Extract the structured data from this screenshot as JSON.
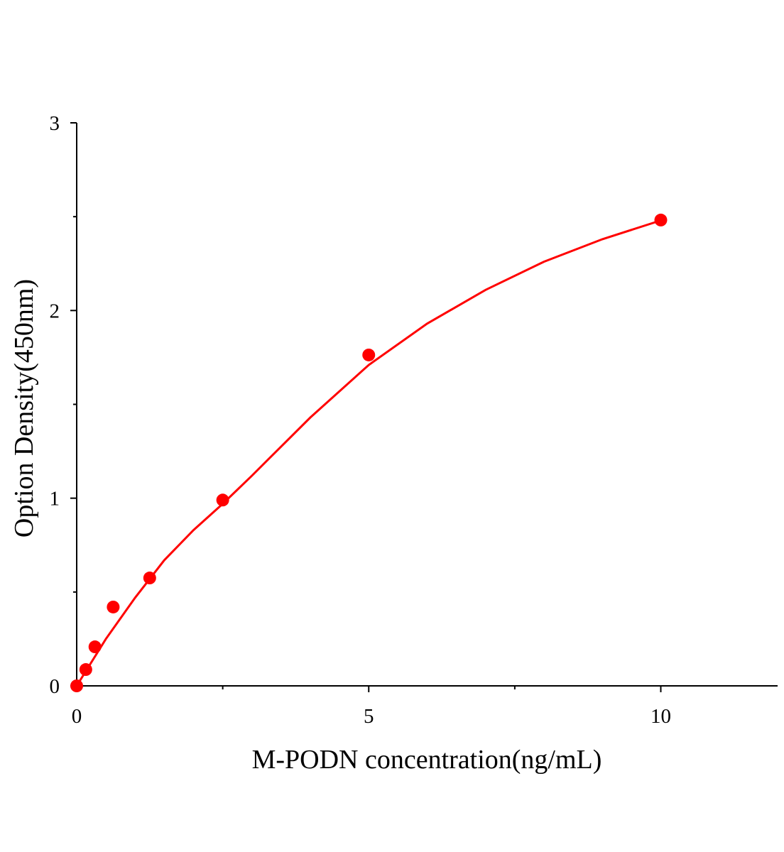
{
  "chart_data": {
    "type": "scatter",
    "x_label": "M-PODN concentration(ng/mL)",
    "y_label": "Option Density(450nm)",
    "xlim": [
      0,
      12
    ],
    "ylim": [
      0,
      3
    ],
    "xticks": [
      0,
      5,
      10
    ],
    "yticks": [
      0,
      1,
      2,
      3
    ],
    "xminorticks": [
      2.5,
      7.5
    ],
    "yminorticks": [
      0.5,
      1.5,
      2.5
    ],
    "series": [
      {
        "mode": "markers",
        "color": "#ff0000",
        "x": [
          0,
          0.156,
          0.3125,
          0.625,
          1.25,
          2.5,
          5,
          10
        ],
        "values": [
          0,
          0.087,
          0.208,
          0.42,
          0.575,
          0.99,
          1.763,
          2.482
        ]
      },
      {
        "mode": "line",
        "color": "#ff0000",
        "x": [
          0,
          0.5,
          1,
          1.5,
          2,
          2.5,
          3,
          4,
          5,
          6,
          7,
          8,
          9,
          10
        ],
        "values": [
          0,
          0.25,
          0.47,
          0.67,
          0.83,
          0.97,
          1.12,
          1.43,
          1.71,
          1.93,
          2.11,
          2.26,
          2.38,
          2.48
        ]
      }
    ]
  }
}
